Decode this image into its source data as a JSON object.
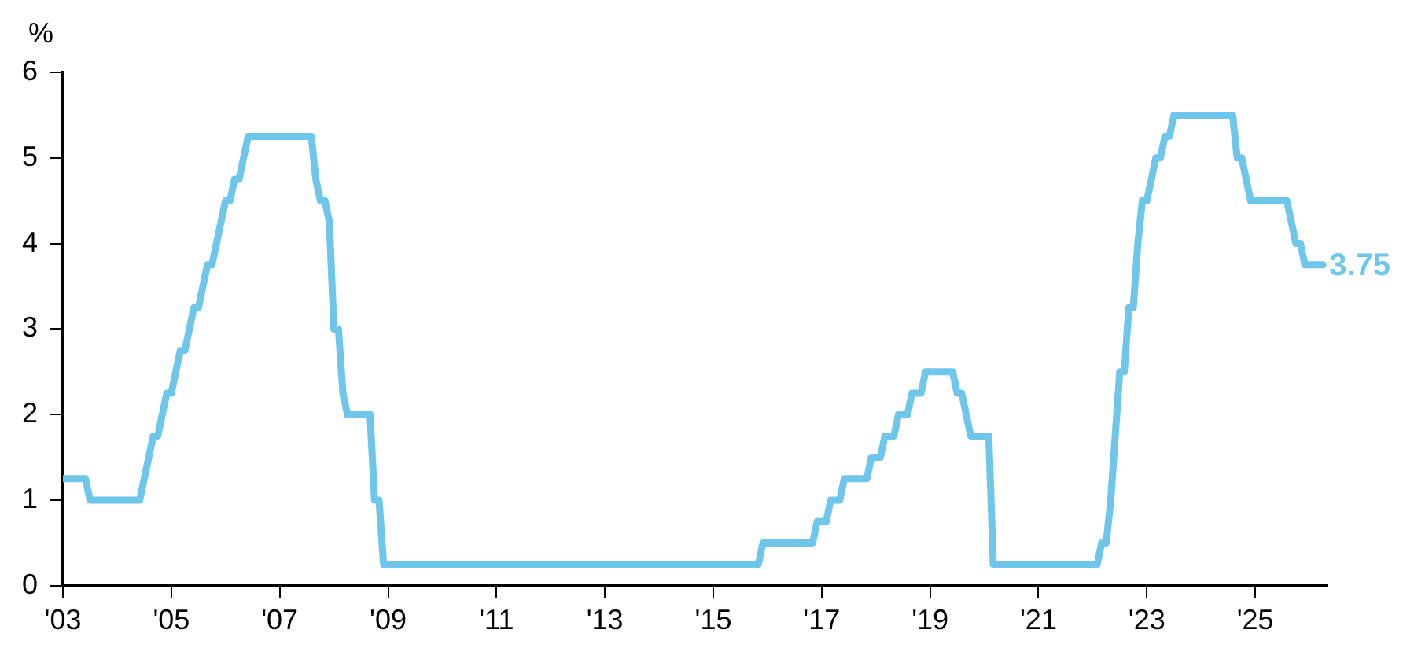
{
  "chart_data": {
    "type": "line",
    "ylabel": "%",
    "x": [
      "2003-01",
      "2003-06",
      "2003-07",
      "2004-06",
      "2004-07",
      "2004-08",
      "2004-09",
      "2004-10",
      "2004-11",
      "2004-12",
      "2005-01",
      "2005-02",
      "2005-03",
      "2005-04",
      "2005-05",
      "2005-06",
      "2005-07",
      "2005-08",
      "2005-09",
      "2005-10",
      "2005-11",
      "2005-12",
      "2006-01",
      "2006-02",
      "2006-03",
      "2006-04",
      "2006-05",
      "2006-06",
      "2007-08",
      "2007-09",
      "2007-10",
      "2007-11",
      "2007-12",
      "2008-01",
      "2008-02",
      "2008-03",
      "2008-04",
      "2008-09",
      "2008-10",
      "2008-11",
      "2008-12",
      "2015-11",
      "2015-12",
      "2016-11",
      "2016-12",
      "2017-02",
      "2017-03",
      "2017-05",
      "2017-06",
      "2017-11",
      "2017-12",
      "2018-02",
      "2018-03",
      "2018-05",
      "2018-06",
      "2018-08",
      "2018-09",
      "2018-11",
      "2018-12",
      "2019-06",
      "2019-07",
      "2019-08",
      "2019-09",
      "2019-10",
      "2020-02",
      "2020-03",
      "2022-02",
      "2022-03",
      "2022-04",
      "2022-05",
      "2022-06",
      "2022-07",
      "2022-08",
      "2022-09",
      "2022-10",
      "2022-11",
      "2022-12",
      "2023-01",
      "2023-02",
      "2023-03",
      "2023-04",
      "2023-05",
      "2023-06",
      "2023-07",
      "2024-08",
      "2024-09",
      "2024-10",
      "2024-11",
      "2024-12",
      "2025-08",
      "2025-09",
      "2025-10",
      "2025-11",
      "2025-12",
      "2026-04"
    ],
    "series": [
      {
        "color": "#6ec6ea",
        "values": [
          1.25,
          1.25,
          1.0,
          1.0,
          1.25,
          1.5,
          1.75,
          1.75,
          2.0,
          2.25,
          2.25,
          2.5,
          2.75,
          2.75,
          3.0,
          3.25,
          3.25,
          3.5,
          3.75,
          3.75,
          4.0,
          4.25,
          4.5,
          4.5,
          4.75,
          4.75,
          5.0,
          5.25,
          5.25,
          4.75,
          4.5,
          4.5,
          4.25,
          3.0,
          3.0,
          2.25,
          2.0,
          2.0,
          1.0,
          1.0,
          0.25,
          0.25,
          0.5,
          0.5,
          0.75,
          0.75,
          1.0,
          1.0,
          1.25,
          1.25,
          1.5,
          1.5,
          1.75,
          1.75,
          2.0,
          2.0,
          2.25,
          2.25,
          2.5,
          2.5,
          2.25,
          2.25,
          2.0,
          1.75,
          1.75,
          0.25,
          0.25,
          0.5,
          0.5,
          1.0,
          1.75,
          2.5,
          2.5,
          3.25,
          3.25,
          4.0,
          4.5,
          4.5,
          4.75,
          5.0,
          5.0,
          5.25,
          5.25,
          5.5,
          5.5,
          5.0,
          5.0,
          4.75,
          4.5,
          4.5,
          4.25,
          4.0,
          4.0,
          3.75,
          3.75
        ]
      }
    ],
    "xlim": [
      "2003",
      "2026-05"
    ],
    "xticks": [
      {
        "value": "2003",
        "label": "'03"
      },
      {
        "value": "2005",
        "label": "'05"
      },
      {
        "value": "2007",
        "label": "'07"
      },
      {
        "value": "2009",
        "label": "'09"
      },
      {
        "value": "2011",
        "label": "'11"
      },
      {
        "value": "2013",
        "label": "'13"
      },
      {
        "value": "2015",
        "label": "'15"
      },
      {
        "value": "2017",
        "label": "'17"
      },
      {
        "value": "2019",
        "label": "'19"
      },
      {
        "value": "2021",
        "label": "'21"
      },
      {
        "value": "2023",
        "label": "'23"
      },
      {
        "value": "2025",
        "label": "'25"
      }
    ],
    "ylim": [
      0,
      6
    ],
    "yticks": [
      0,
      1,
      2,
      3,
      4,
      5,
      6
    ],
    "annotations": [
      {
        "text": "3.75",
        "x": "2026-04",
        "y": 3.75
      }
    ],
    "grid": false,
    "legend": false,
    "marker": "none",
    "line_style": "solid"
  }
}
